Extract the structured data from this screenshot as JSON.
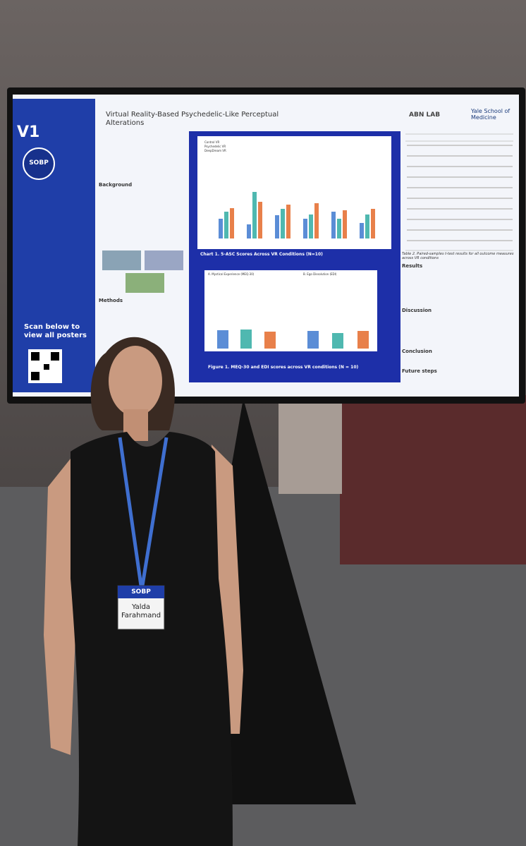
{
  "poster": {
    "badge": "V1",
    "logo": "SOBP",
    "scan_text": "Scan below to view all posters",
    "title": "Virtual Reality-Based Psychedelic-Like Perceptual Alterations",
    "labs": [
      "ABN LAB",
      "Yale School of Medicine"
    ],
    "sections": [
      "Background",
      "Methods",
      "Results",
      "Discussion",
      "Conclusion",
      "Future steps"
    ],
    "chart1": {
      "legend": [
        "Control VR",
        "Psychedelic VR",
        "DeepDream VR"
      ],
      "caption": "Chart 1. 5-ASC Scores Across VR Conditions (N=10)"
    },
    "figure1": {
      "panels": [
        "A. Mystical Experience (MEQ-30)",
        "B. Ego Dissolution (EDI)"
      ],
      "caption": "Figure 1. MEQ-30 and EDI scores across VR conditions (N = 10)"
    },
    "table_caption": "Table 2. Paired-samples t-test results for all outcome measures across VR conditions"
  },
  "name_badge": {
    "org": "SOBP",
    "name": "Yalda Farahmand"
  }
}
